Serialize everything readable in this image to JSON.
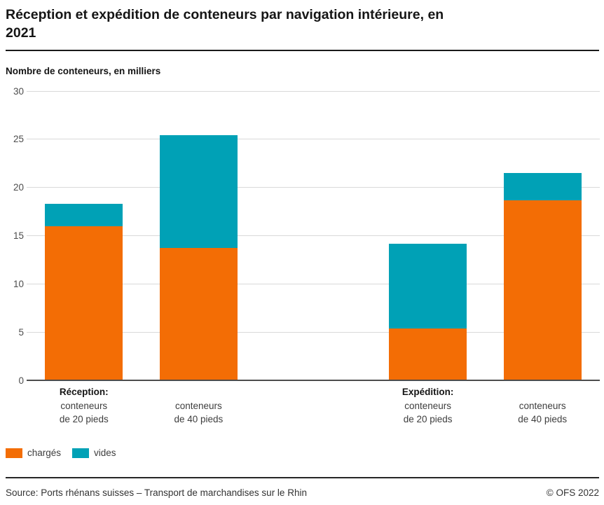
{
  "header": {
    "title_line1": "Réception et expédition de conteneurs par navigation intérieure, en",
    "title_line2": "2021",
    "subtitle": "Nombre de conteneurs, en milliers"
  },
  "colors": {
    "charges": "#f36d05",
    "vides": "#00a1b6",
    "gridline": "#d9d9d9",
    "axis": "#4d4d4d"
  },
  "chart_data": {
    "type": "bar",
    "stacked": true,
    "title": "Réception et expédition de conteneurs par navigation intérieure, en 2021",
    "ylabel": "Nombre de conteneurs, en milliers",
    "ylim": [
      0,
      30
    ],
    "yticks": [
      0,
      5,
      10,
      15,
      20,
      25,
      30
    ],
    "grid": true,
    "legend_position": "bottom-left",
    "categories": [
      {
        "group": "Réception:",
        "lines": [
          "conteneurs",
          "de 20 pieds"
        ]
      },
      {
        "group": "",
        "lines": [
          "conteneurs",
          "de 40 pieds"
        ]
      },
      {
        "group": "Expédition:",
        "lines": [
          "conteneurs",
          "de 20 pieds"
        ]
      },
      {
        "group": "",
        "lines": [
          "conteneurs",
          "de 40 pieds"
        ]
      }
    ],
    "series": [
      {
        "name": "chargés",
        "color": "#f36d05",
        "values": [
          16.0,
          13.7,
          5.4,
          18.7
        ]
      },
      {
        "name": "vides",
        "color": "#00a1b6",
        "values": [
          2.3,
          11.7,
          8.8,
          2.8
        ]
      }
    ],
    "totals": [
      18.3,
      25.4,
      14.2,
      21.5
    ]
  },
  "footer": {
    "source": "Source: Ports rhénans suisses – Transport de marchandises sur le Rhin",
    "copyright": "© OFS 2022"
  }
}
